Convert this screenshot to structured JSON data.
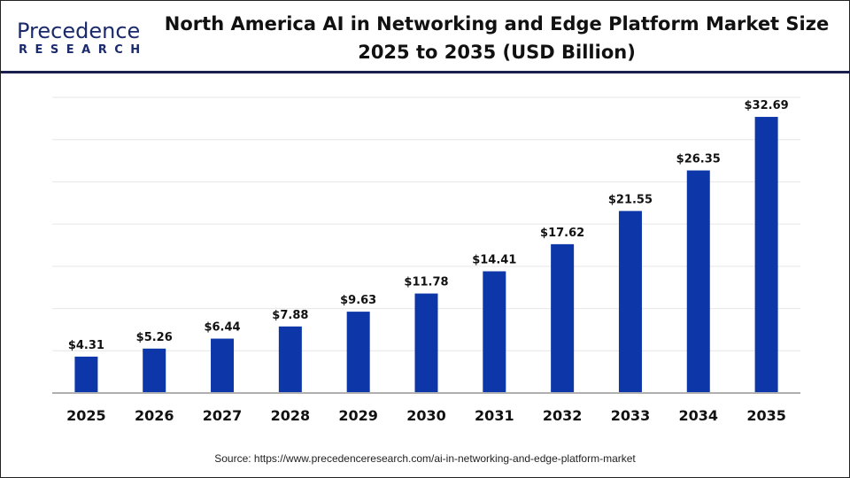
{
  "logo": {
    "line1": "Precedence",
    "line2": "RESEARCH"
  },
  "chart_data": {
    "type": "bar",
    "title": "North America  AI in Networking and Edge Platform Market Size 2025 to 2035 (USD Billion)",
    "title_lines": [
      "North America  AI in Networking and Edge Platform Market Size",
      "2025 to 2035 (USD Billion)"
    ],
    "categories": [
      "2025",
      "2026",
      "2027",
      "2028",
      "2029",
      "2030",
      "2031",
      "2032",
      "2033",
      "2034",
      "2035"
    ],
    "values": [
      4.31,
      5.26,
      6.44,
      7.88,
      9.63,
      11.78,
      14.41,
      17.62,
      21.55,
      26.35,
      32.69
    ],
    "labels": [
      "$4.31",
      "$5.26",
      "$6.44",
      "$7.88",
      "$9.63",
      "$11.78",
      "$14.41",
      "$17.62",
      "$21.55",
      "$26.35",
      "$32.69"
    ],
    "xlabel": "",
    "ylabel": "",
    "ylim": [
      0,
      35
    ],
    "grid": true,
    "grid_step": 5,
    "bar_color": "#0d36a8"
  },
  "source": "Source: https://www.precedenceresearch.com/ai-in-networking-and-edge-platform-market"
}
